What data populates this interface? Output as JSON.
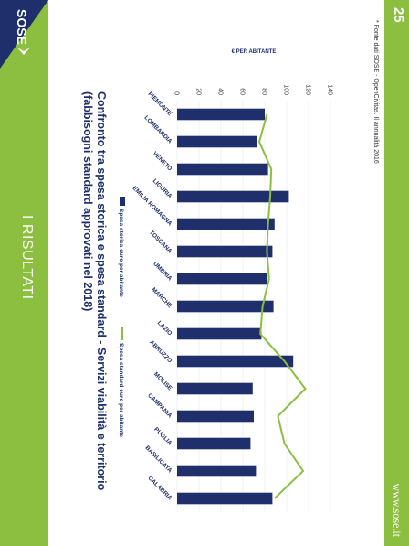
{
  "page_number": "25",
  "website": "www.sose.it",
  "logo_text": "SOSE",
  "section_title": "I RISULTATI",
  "heading_line1": "Confronto tra spesa storica e spesa standard - Servizi viabilità e territorio",
  "heading_line2": "(fabbisogni standard approvati nel 2018)",
  "source_note": "* Fonte dati SOSE - OpenCivitas. Il annualità 2016",
  "colors": {
    "green": "#8cbf3f",
    "navy": "#1e2f6b",
    "bar": "#1e2f6b",
    "line": "#8cbf3f"
  },
  "chart_data": {
    "type": "bar",
    "title": "",
    "ylabel": "€ per abitante",
    "xlabel": "",
    "ylim": [
      0,
      140
    ],
    "yticks": [
      "0",
      "20",
      "40",
      "60",
      "80",
      "100",
      "120",
      "140"
    ],
    "categories": [
      "PIEMONTE",
      "LOMBARDIA",
      "VENETO",
      "LIGURIA",
      "EMILIA ROMAGNA",
      "TOSCANA",
      "UMBRIA",
      "MARCHE",
      "LAZIO",
      "ABRUZZO",
      "MOLISE",
      "CAMPANIA",
      "PUGLIA",
      "BASILICATA",
      "CALABRIA"
    ],
    "series": [
      {
        "name": "Spesa storica euro per abitante",
        "kind": "bar",
        "values": [
          80,
          73,
          83,
          102,
          89,
          87,
          82,
          88,
          77,
          106,
          69,
          70,
          67,
          72,
          87
        ]
      },
      {
        "name": "Spesa standard euro per abitante",
        "kind": "line",
        "values": [
          82,
          75,
          86,
          85,
          83,
          82,
          84,
          78,
          76,
          98,
          117,
          92,
          98,
          115,
          89
        ]
      }
    ],
    "legend_position": "bottom",
    "grid": true
  }
}
